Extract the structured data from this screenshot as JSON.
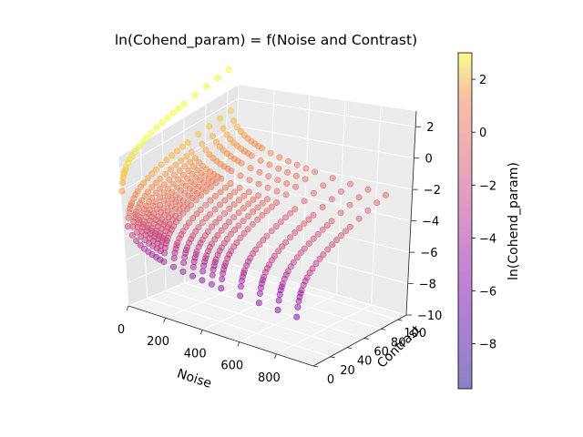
{
  "chart_data": {
    "type": "scatter",
    "projection": "3d",
    "title": "ln(Cohend_param) = f(Noise and Contrast)",
    "xlabel": "Noise",
    "ylabel": "Contrast",
    "zlabel": "",
    "xlim": [
      0,
      1000
    ],
    "ylim": [
      0,
      110
    ],
    "zlim": [
      -10,
      3
    ],
    "x_ticks": [
      0,
      200,
      400,
      600,
      800
    ],
    "y_ticks": [
      0,
      20,
      40,
      60,
      80,
      100
    ],
    "z_ticks": [
      -10,
      -8,
      -6,
      -4,
      -2,
      0,
      2
    ],
    "grid": true,
    "noise_levels": [
      1,
      20,
      40,
      60,
      80,
      100,
      120,
      140,
      160,
      180,
      200,
      250,
      300,
      350,
      400,
      450,
      500,
      600,
      700,
      800,
      900
    ],
    "contrast_levels": [
      1,
      2,
      3,
      4,
      5,
      6,
      8,
      10,
      12,
      15,
      18,
      22,
      26,
      30,
      35,
      40,
      45,
      50,
      55,
      60,
      70,
      80,
      90,
      100
    ],
    "value_formula": "ln(Contrast / Noise)",
    "colormap": "plasma",
    "marker_alpha": 0.5,
    "colorbar": {
      "label": "ln(Cohend_param)",
      "min": -9.7,
      "max": 3.0,
      "ticks": [
        -8,
        -6,
        -4,
        -2,
        0,
        2
      ],
      "placement": "right"
    }
  }
}
